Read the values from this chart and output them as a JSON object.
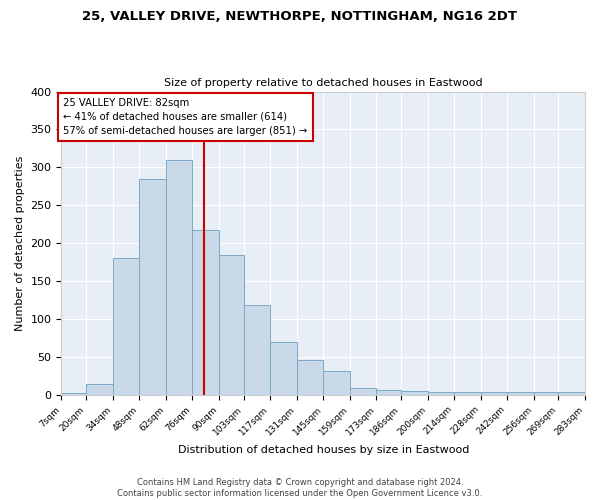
{
  "title1": "25, VALLEY DRIVE, NEWTHORPE, NOTTINGHAM, NG16 2DT",
  "title2": "Size of property relative to detached houses in Eastwood",
  "xlabel": "Distribution of detached houses by size in Eastwood",
  "ylabel": "Number of detached properties",
  "bin_edges": [
    7,
    20,
    34,
    48,
    62,
    76,
    90,
    103,
    117,
    131,
    145,
    159,
    173,
    186,
    200,
    214,
    228,
    242,
    256,
    269,
    283
  ],
  "bin_labels": [
    "7sqm",
    "20sqm",
    "34sqm",
    "48sqm",
    "62sqm",
    "76sqm",
    "90sqm",
    "103sqm",
    "117sqm",
    "131sqm",
    "145sqm",
    "159sqm",
    "173sqm",
    "186sqm",
    "200sqm",
    "214sqm",
    "228sqm",
    "242sqm",
    "256sqm",
    "269sqm",
    "283sqm"
  ],
  "bar_heights": [
    3,
    14,
    180,
    285,
    310,
    218,
    185,
    118,
    70,
    46,
    31,
    9,
    6,
    5,
    4,
    4,
    4,
    4,
    4,
    4
  ],
  "vline_x": 82,
  "bar_color": "#c9d9e8",
  "bar_edge_color": "#7aaac8",
  "vline_color": "#cc0000",
  "annotation_line1": "25 VALLEY DRIVE: 82sqm",
  "annotation_line2": "← 41% of detached houses are smaller (614)",
  "annotation_line3": "57% of semi-detached houses are larger (851) →",
  "annotation_box_facecolor": "#ffffff",
  "annotation_box_edgecolor": "#cc0000",
  "ylim": [
    0,
    400
  ],
  "yticks": [
    0,
    50,
    100,
    150,
    200,
    250,
    300,
    350,
    400
  ],
  "figure_bg": "#ffffff",
  "plot_bg": "#e8eef5",
  "footnote1": "Contains HM Land Registry data © Crown copyright and database right 2024.",
  "footnote2": "Contains public sector information licensed under the Open Government Licence v3.0."
}
